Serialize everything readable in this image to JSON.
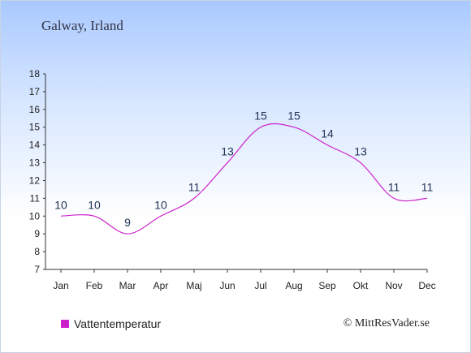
{
  "chart_data": {
    "type": "line",
    "title": "Galway, Irland",
    "categories": [
      "Jan",
      "Feb",
      "Mar",
      "Apr",
      "Maj",
      "Jun",
      "Jul",
      "Aug",
      "Sep",
      "Okt",
      "Nov",
      "Dec"
    ],
    "series": [
      {
        "name": "Vattentemperatur",
        "values": [
          10,
          10,
          9,
          10,
          11,
          13,
          15,
          15,
          14,
          13,
          11,
          11
        ],
        "color": "#cc22cc"
      }
    ],
    "ylim": [
      7,
      18
    ],
    "yticks": [
      7,
      8,
      9,
      10,
      11,
      12,
      13,
      14,
      15,
      16,
      17,
      18
    ],
    "xlabel": "",
    "ylabel": "",
    "grid": false,
    "legend": "bottom-left"
  },
  "footer": {
    "credit": "© MittResVader.se"
  }
}
